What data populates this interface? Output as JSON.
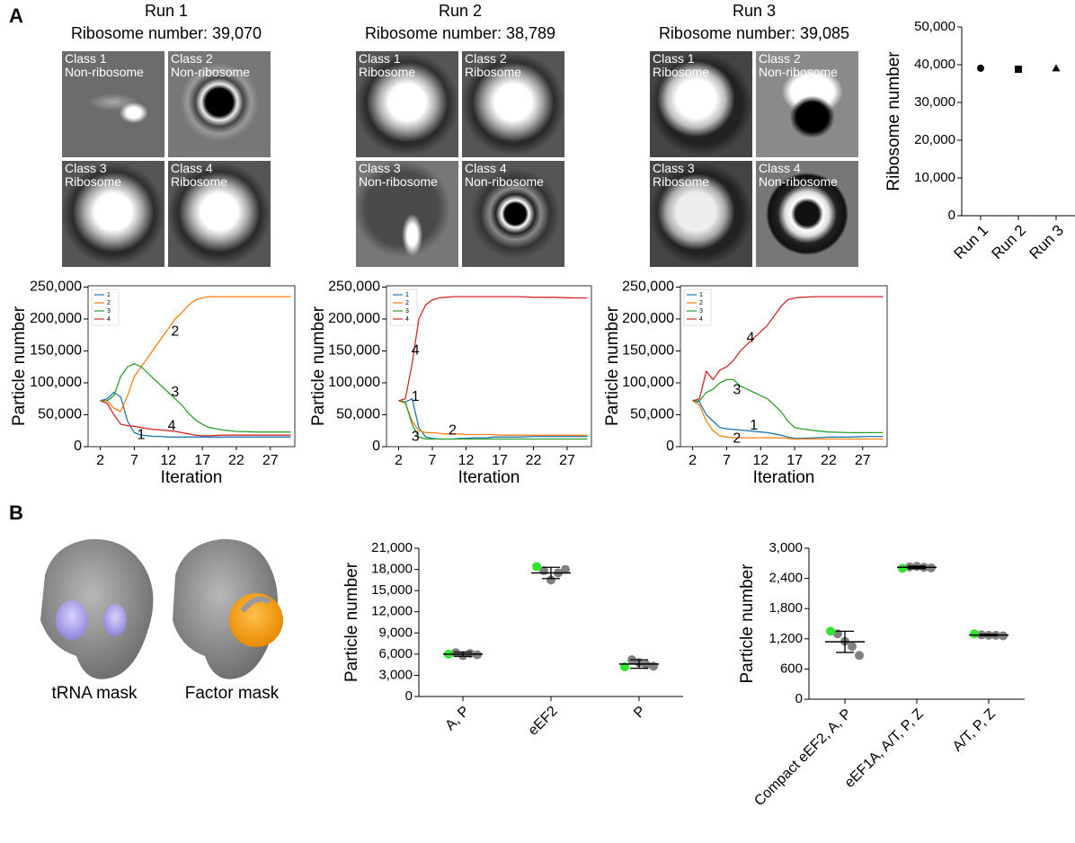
{
  "panel_labels": [
    "A",
    "B"
  ],
  "runs": [
    {
      "title": "Run 1",
      "subtitle": "Ribosome number: 39,070",
      "classes": [
        {
          "name": "Class 1",
          "kind": "Non-ribosome"
        },
        {
          "name": "Class 2",
          "kind": "Non-ribosome"
        },
        {
          "name": "Class 3",
          "kind": "Ribosome"
        },
        {
          "name": "Class 4",
          "kind": "Ribosome"
        }
      ]
    },
    {
      "title": "Run 2",
      "subtitle": "Ribosome number: 38,789",
      "classes": [
        {
          "name": "Class 1",
          "kind": "Ribosome"
        },
        {
          "name": "Class 2",
          "kind": "Ribosome"
        },
        {
          "name": "Class 3",
          "kind": "Non-ribosome"
        },
        {
          "name": "Class 4",
          "kind": "Non-ribosome"
        }
      ]
    },
    {
      "title": "Run 3",
      "subtitle": "Ribosome number: 39,085",
      "classes": [
        {
          "name": "Class 1",
          "kind": "Ribosome"
        },
        {
          "name": "Class 2",
          "kind": "Non-ribosome"
        },
        {
          "name": "Class 3",
          "kind": "Ribosome"
        },
        {
          "name": "Class 4",
          "kind": "Non-ribosome"
        }
      ]
    }
  ],
  "masks": [
    "tRNA mask",
    "Factor mask"
  ],
  "chart_data": [
    {
      "type": "scatter",
      "ylabel": "Ribosome number",
      "categories": [
        "Run 1",
        "Run 2",
        "Run 3"
      ],
      "values": [
        39070,
        38789,
        39085
      ],
      "markers": [
        "circle",
        "square",
        "triangle"
      ],
      "color": "#000000",
      "ylim": [
        0,
        50000
      ],
      "yticks": [
        0,
        {
          "value": 10000,
          "label": "10,000"
        },
        {
          "value": 20000,
          "label": "20,000"
        },
        {
          "value": 30000,
          "label": "30,000"
        },
        {
          "value": 40000,
          "label": "40,000"
        },
        {
          "value": 50000,
          "label": "50,000"
        }
      ]
    },
    {
      "type": "line",
      "xlabel": "Iteration",
      "ylabel": "Particle number",
      "legend": "upper left",
      "x": [
        2,
        3,
        4,
        5,
        6,
        7,
        8,
        9,
        10,
        11,
        12,
        13,
        14,
        15,
        16,
        17,
        18,
        20,
        22,
        25,
        28,
        30
      ],
      "xlim": [
        0.2,
        30.6
      ],
      "xticks": [
        2,
        7,
        12,
        17,
        22,
        27
      ],
      "ylim": [
        0,
        252000
      ],
      "yticks": [
        0,
        {
          "value": 50000,
          "label": "50,000"
        },
        {
          "value": 100000,
          "label": "100,000"
        },
        {
          "value": 150000,
          "label": "150,000"
        },
        {
          "value": 200000,
          "label": "200,000"
        },
        {
          "value": 250000,
          "label": "250,000"
        }
      ],
      "series": [
        {
          "name": "1",
          "color": "#1f77b4",
          "values": [
            72000,
            75000,
            85000,
            78000,
            40000,
            22000,
            18000,
            17000,
            16000,
            16000,
            15000,
            15000,
            15000,
            15000,
            15000,
            15000,
            15000,
            15000,
            15000,
            15000,
            15000,
            15000
          ]
        },
        {
          "name": "2",
          "color": "#ff7f0e",
          "values": [
            72000,
            72000,
            60000,
            55000,
            80000,
            110000,
            125000,
            140000,
            155000,
            170000,
            185000,
            200000,
            210000,
            222000,
            230000,
            233000,
            235000,
            235000,
            235000,
            235000,
            235000,
            235000
          ]
        },
        {
          "name": "3",
          "color": "#2ca02c",
          "values": [
            72000,
            72000,
            80000,
            110000,
            125000,
            130000,
            125000,
            115000,
            105000,
            95000,
            85000,
            75000,
            65000,
            52000,
            42000,
            35000,
            30000,
            26000,
            24000,
            23000,
            23000,
            23000
          ]
        },
        {
          "name": "4",
          "color": "#d62728",
          "values": [
            72000,
            68000,
            50000,
            35000,
            33000,
            32000,
            30000,
            28000,
            27000,
            26000,
            25000,
            24000,
            22000,
            20000,
            18000,
            17000,
            17000,
            18000,
            18000,
            18000,
            18000,
            18000
          ]
        }
      ],
      "annotations": [
        {
          "text": "2",
          "x": 13,
          "y": 180000
        },
        {
          "text": "3",
          "x": 13,
          "y": 85000
        },
        {
          "text": "4",
          "x": 12.5,
          "y": 32000
        },
        {
          "text": "1",
          "x": 8,
          "y": 18000
        }
      ]
    },
    {
      "type": "line",
      "xlabel": "Iteration",
      "ylabel": "Particle number",
      "legend": "upper left",
      "x": [
        2,
        3,
        4,
        5,
        6,
        7,
        8,
        9,
        10,
        11,
        12,
        13,
        14,
        15,
        16,
        17,
        18,
        20,
        22,
        25,
        28,
        30
      ],
      "xlim": [
        0.2,
        30.6
      ],
      "xticks": [
        2,
        7,
        12,
        17,
        22,
        27
      ],
      "ylim": [
        0,
        252000
      ],
      "yticks": [
        0,
        {
          "value": 50000,
          "label": "50,000"
        },
        {
          "value": 100000,
          "label": "100,000"
        },
        {
          "value": 150000,
          "label": "150,000"
        },
        {
          "value": 200000,
          "label": "200,000"
        },
        {
          "value": 250000,
          "label": "250,000"
        }
      ],
      "series": [
        {
          "name": "1",
          "color": "#1f77b4",
          "values": [
            72000,
            70000,
            75000,
            30000,
            15000,
            13000,
            12000,
            12000,
            12000,
            13000,
            13000,
            14000,
            14000,
            14000,
            15000,
            15000,
            15000,
            15000,
            16000,
            16000,
            16000,
            16000
          ]
        },
        {
          "name": "2",
          "color": "#ff7f0e",
          "values": [
            72000,
            68000,
            40000,
            25000,
            22000,
            22000,
            21000,
            20000,
            20000,
            20000,
            19000,
            19000,
            19000,
            19000,
            19000,
            18000,
            18000,
            18000,
            18000,
            18000,
            18000,
            18000
          ]
        },
        {
          "name": "3",
          "color": "#2ca02c",
          "values": [
            72000,
            70000,
            35000,
            15000,
            12000,
            12000,
            12000,
            12000,
            12000,
            12000,
            12000,
            12000,
            12000,
            12000,
            12000,
            12000,
            12000,
            12000,
            12000,
            12000,
            12000,
            12000
          ]
        },
        {
          "name": "4",
          "color": "#d62728",
          "values": [
            72000,
            75000,
            130000,
            200000,
            222000,
            230000,
            233000,
            234000,
            235000,
            235000,
            235000,
            235000,
            235000,
            235000,
            235000,
            235000,
            235000,
            235000,
            234000,
            234000,
            233000,
            233000
          ]
        }
      ],
      "annotations": [
        {
          "text": "4",
          "x": 4.5,
          "y": 150000
        },
        {
          "text": "1",
          "x": 4.5,
          "y": 78000
        },
        {
          "text": "2",
          "x": 10,
          "y": 25000
        },
        {
          "text": "3",
          "x": 4.5,
          "y": 15000
        }
      ]
    },
    {
      "type": "line",
      "xlabel": "Iteration",
      "ylabel": "Particle number",
      "legend": "upper left",
      "x": [
        2,
        3,
        4,
        5,
        6,
        7,
        8,
        9,
        10,
        11,
        12,
        13,
        14,
        15,
        16,
        17,
        18,
        20,
        22,
        25,
        28,
        30
      ],
      "xlim": [
        0.2,
        30.6
      ],
      "xticks": [
        2,
        7,
        12,
        17,
        22,
        27
      ],
      "ylim": [
        0,
        252000
      ],
      "yticks": [
        0,
        {
          "value": 50000,
          "label": "50,000"
        },
        {
          "value": 100000,
          "label": "100,000"
        },
        {
          "value": 150000,
          "label": "150,000"
        },
        {
          "value": 200000,
          "label": "200,000"
        },
        {
          "value": 250000,
          "label": "250,000"
        }
      ],
      "series": [
        {
          "name": "1",
          "color": "#1f77b4",
          "values": [
            72000,
            70000,
            50000,
            40000,
            30000,
            28000,
            27000,
            26000,
            25000,
            24000,
            23000,
            22000,
            20000,
            18000,
            15000,
            13000,
            13000,
            14000,
            15000,
            15000,
            16000,
            16000
          ]
        },
        {
          "name": "2",
          "color": "#ff7f0e",
          "values": [
            72000,
            65000,
            40000,
            25000,
            17000,
            15000,
            14000,
            14000,
            14000,
            14000,
            14000,
            14000,
            14000,
            14000,
            13000,
            12000,
            12000,
            12000,
            12000,
            12000,
            12000,
            12000
          ]
        },
        {
          "name": "3",
          "color": "#2ca02c",
          "values": [
            72000,
            72000,
            85000,
            90000,
            100000,
            105000,
            105000,
            95000,
            90000,
            85000,
            80000,
            75000,
            65000,
            55000,
            40000,
            30000,
            28000,
            25000,
            23000,
            22000,
            22000,
            22000
          ]
        },
        {
          "name": "4",
          "color": "#d62728",
          "values": [
            72000,
            75000,
            118000,
            105000,
            120000,
            125000,
            135000,
            150000,
            160000,
            170000,
            180000,
            190000,
            205000,
            220000,
            230000,
            233000,
            234000,
            235000,
            235000,
            235000,
            235000,
            235000
          ]
        }
      ],
      "annotations": [
        {
          "text": "4",
          "x": 10.5,
          "y": 170000
        },
        {
          "text": "3",
          "x": 8.5,
          "y": 88000
        },
        {
          "text": "1",
          "x": 11,
          "y": 33000
        },
        {
          "text": "2",
          "x": 8.5,
          "y": 12000
        }
      ]
    },
    {
      "type": "strip",
      "ylabel": "Particle number",
      "categories": [
        "A, P",
        "eEF2",
        "P"
      ],
      "highlight_color": "#2ee62e",
      "point_color": "#808080",
      "highlight_values": [
        6000,
        18400,
        4200
      ],
      "points": [
        [
          6200,
          5800,
          6100,
          5900
        ],
        [
          17800,
          16500,
          17500,
          18000
        ],
        [
          5200,
          4800,
          4500,
          4300
        ]
      ],
      "means": [
        6000,
        17500,
        4600
      ],
      "errors": [
        300,
        800,
        600
      ],
      "ylim": [
        0,
        21000
      ],
      "yticks": [
        0,
        {
          "value": 3000,
          "label": "3,000"
        },
        {
          "value": 6000,
          "label": "6,000"
        },
        {
          "value": 9000,
          "label": "9,000"
        },
        {
          "value": 12000,
          "label": "12,000"
        },
        {
          "value": 15000,
          "label": "15,000"
        },
        {
          "value": 18000,
          "label": "18,000"
        },
        {
          "value": 21000,
          "label": "21,000"
        }
      ]
    },
    {
      "type": "strip",
      "ylabel": "Particle number",
      "categories": [
        "Compact eEF2, A, P",
        "eEF1A, A/T, P, Z",
        "A/T, P, Z"
      ],
      "highlight_color": "#2ee62e",
      "point_color": "#808080",
      "highlight_values": [
        1350,
        2600,
        1300
      ],
      "points": [
        [
          1300,
          1150,
          1050,
          870
        ],
        [
          2630,
          2640,
          2620,
          2610
        ],
        [
          1280,
          1270,
          1270,
          1260
        ]
      ],
      "means": [
        1140,
        2620,
        1275
      ],
      "errors": [
        210,
        25,
        15
      ],
      "ylim": [
        0,
        3000
      ],
      "yticks": [
        0,
        600,
        {
          "value": 1200,
          "label": "1,200"
        },
        {
          "value": 1800,
          "label": "1,800"
        },
        {
          "value": 2400,
          "label": "2,400"
        },
        {
          "value": 3000,
          "label": "3,000"
        }
      ]
    }
  ]
}
